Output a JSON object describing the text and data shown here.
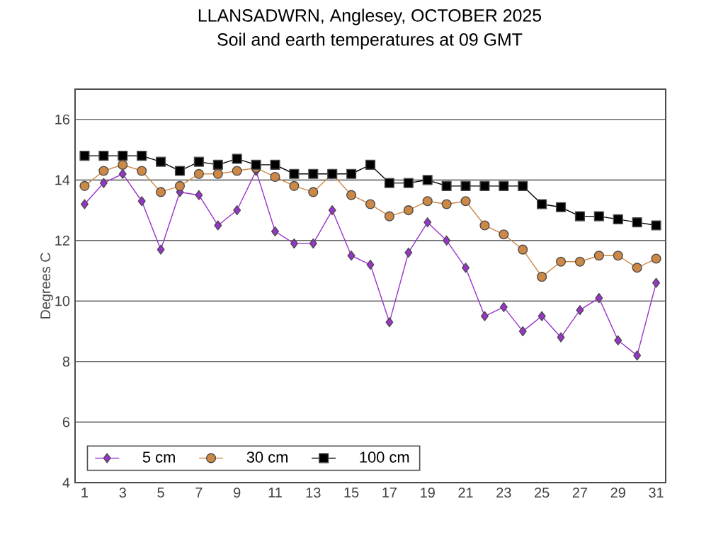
{
  "chart_data": {
    "type": "line",
    "title": "LLANSADWRN, Anglesey, OCTOBER 2025",
    "subtitle": "Soil and earth temperatures at 09 GMT",
    "ylabel": "Degrees C",
    "categories": [
      "1",
      null,
      "3",
      null,
      "5",
      null,
      "7",
      null,
      "9",
      null,
      "11",
      null,
      "13",
      null,
      "15",
      null,
      "17",
      null,
      "19",
      null,
      "21",
      null,
      "23",
      null,
      "25",
      null,
      "27",
      null,
      "29",
      null,
      "31"
    ],
    "ylim": [
      4,
      17
    ],
    "yticks": [
      4,
      6,
      8,
      10,
      12,
      14,
      16
    ],
    "grid": "y",
    "legend": "bottom left",
    "series": [
      {
        "name": "5 cm",
        "color": "#9933cc",
        "marker": "diamond",
        "values": [
          13.2,
          13.9,
          14.2,
          13.3,
          11.7,
          13.6,
          13.5,
          12.5,
          13.0,
          14.3,
          12.3,
          11.9,
          11.9,
          13.0,
          11.5,
          11.2,
          9.3,
          11.6,
          12.6,
          12.0,
          11.1,
          9.5,
          9.8,
          9.0,
          9.5,
          8.8,
          9.7,
          10.1,
          8.7,
          8.2,
          10.6
        ]
      },
      {
        "name": "30 cm",
        "color": "#cc8844",
        "marker": "circle",
        "values": [
          13.8,
          14.3,
          14.5,
          14.3,
          13.6,
          13.8,
          14.2,
          14.2,
          14.3,
          14.4,
          14.1,
          13.8,
          13.6,
          14.2,
          13.5,
          13.2,
          12.8,
          13.0,
          13.3,
          13.2,
          13.3,
          12.5,
          12.2,
          11.7,
          10.8,
          11.3,
          11.3,
          11.5,
          11.5,
          11.1,
          11.4
        ]
      },
      {
        "name": "100 cm",
        "color": "#000000",
        "marker": "square",
        "values": [
          14.8,
          14.8,
          14.8,
          14.8,
          14.6,
          14.3,
          14.6,
          14.5,
          14.7,
          14.5,
          14.5,
          14.2,
          14.2,
          14.2,
          14.2,
          14.5,
          13.9,
          13.9,
          14.0,
          13.8,
          13.8,
          13.8,
          13.8,
          13.8,
          13.2,
          13.1,
          12.8,
          12.8,
          12.7,
          12.6,
          12.5
        ]
      }
    ]
  }
}
